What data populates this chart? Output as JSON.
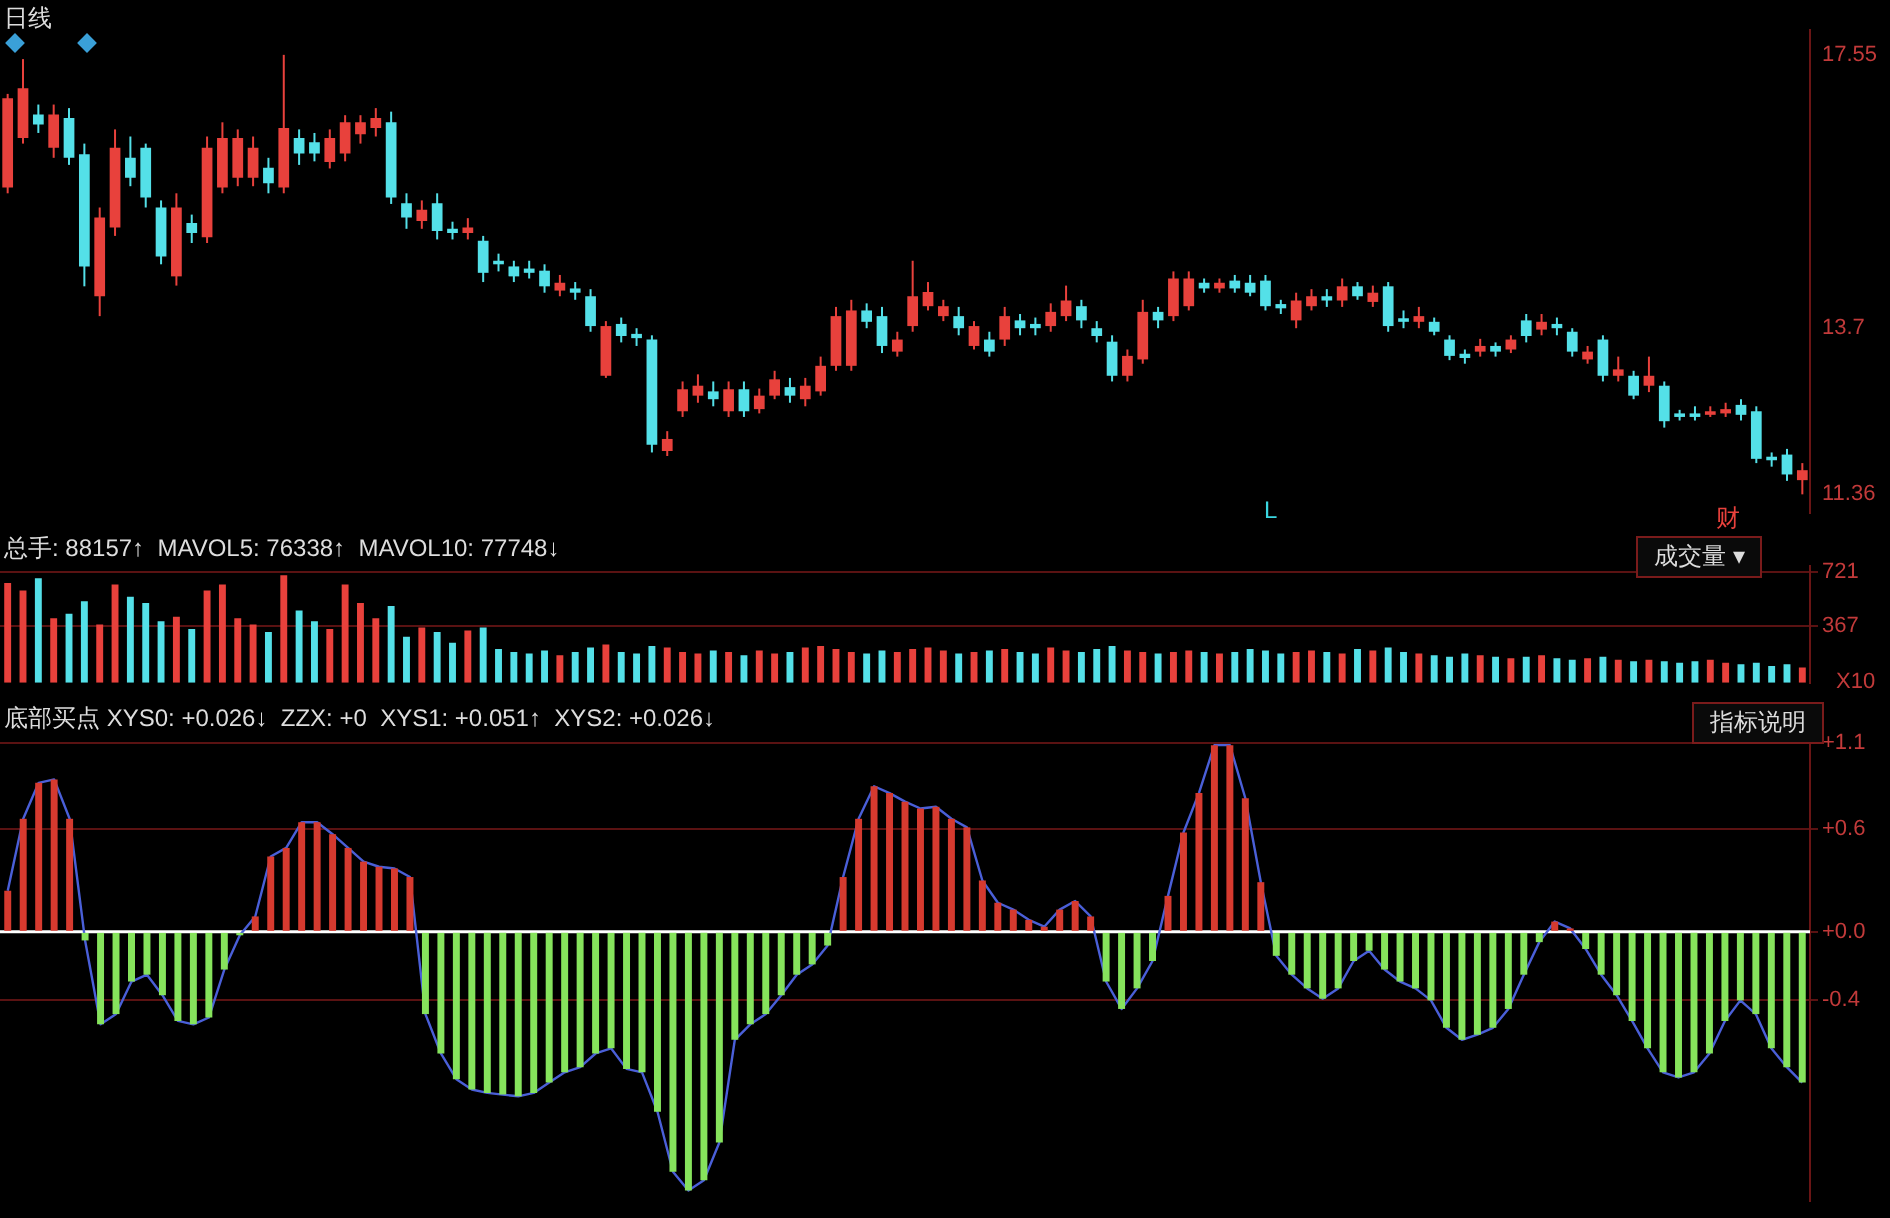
{
  "chart_data": [
    {
      "type": "candlestick",
      "title": "日线",
      "tick_labels": "y",
      "ylim": [
        11.1,
        17.9
      ],
      "yticks": [
        17.55,
        13.7,
        11.36
      ],
      "categories": [
        null,
        null,
        null,
        null,
        null,
        null,
        null,
        null,
        null,
        null,
        null,
        null,
        null,
        null,
        null,
        null,
        null,
        null,
        null,
        null,
        null,
        null,
        null,
        null,
        null,
        null,
        null,
        null,
        null,
        null,
        null,
        null,
        null,
        null,
        null,
        null,
        null,
        null,
        null,
        null,
        null,
        null,
        null,
        null,
        null,
        null,
        null,
        null,
        null,
        null,
        null,
        null,
        null,
        null,
        null,
        null,
        null,
        null,
        null,
        null,
        null,
        null,
        null,
        null,
        null,
        null,
        null,
        null,
        null,
        null,
        null,
        null,
        null,
        null,
        null,
        null,
        null,
        null,
        null,
        null,
        null,
        null,
        null,
        null,
        null,
        null,
        null,
        null,
        null,
        null,
        null,
        null,
        null,
        null,
        null,
        null,
        null,
        null,
        null,
        null,
        null,
        null,
        null,
        null,
        null,
        null,
        null,
        null,
        null,
        null,
        null,
        null,
        null,
        null,
        null,
        null,
        null,
        null
      ],
      "ohlc": [
        [
          15.68,
          17.0,
          15.6,
          16.94
        ],
        [
          16.38,
          17.49,
          16.3,
          17.08
        ],
        [
          16.71,
          16.85,
          16.45,
          16.57
        ],
        [
          16.24,
          16.85,
          16.1,
          16.71
        ],
        [
          16.66,
          16.8,
          16.0,
          16.1
        ],
        [
          16.15,
          16.3,
          14.29,
          14.57
        ],
        [
          14.15,
          15.4,
          13.87,
          15.26
        ],
        [
          15.12,
          16.5,
          15.0,
          16.24
        ],
        [
          16.1,
          16.4,
          15.7,
          15.82
        ],
        [
          16.24,
          16.3,
          15.4,
          15.54
        ],
        [
          15.4,
          15.5,
          14.6,
          14.71
        ],
        [
          14.43,
          15.6,
          14.3,
          15.4
        ],
        [
          15.18,
          15.3,
          14.9,
          15.04
        ],
        [
          14.98,
          16.4,
          14.9,
          16.24
        ],
        [
          15.68,
          16.6,
          15.6,
          16.38
        ],
        [
          15.82,
          16.5,
          15.7,
          16.38
        ],
        [
          15.82,
          16.4,
          15.7,
          16.24
        ],
        [
          15.96,
          16.1,
          15.6,
          15.74
        ],
        [
          15.68,
          17.55,
          15.6,
          16.52
        ],
        [
          16.38,
          16.5,
          16.0,
          16.16
        ],
        [
          16.32,
          16.45,
          16.05,
          16.16
        ],
        [
          16.04,
          16.5,
          15.95,
          16.38
        ],
        [
          16.16,
          16.7,
          16.05,
          16.6
        ],
        [
          16.43,
          16.7,
          16.3,
          16.6
        ],
        [
          16.52,
          16.8,
          16.4,
          16.66
        ],
        [
          16.6,
          16.75,
          15.45,
          15.54
        ],
        [
          15.46,
          15.6,
          15.1,
          15.26
        ],
        [
          15.21,
          15.5,
          15.1,
          15.37
        ],
        [
          15.46,
          15.6,
          14.95,
          15.07
        ],
        [
          15.1,
          15.2,
          14.95,
          15.04
        ],
        [
          15.04,
          15.25,
          14.95,
          15.12
        ],
        [
          14.93,
          15.0,
          14.35,
          14.48
        ],
        [
          14.65,
          14.75,
          14.5,
          14.6
        ],
        [
          14.57,
          14.65,
          14.35,
          14.43
        ],
        [
          14.54,
          14.65,
          14.4,
          14.48
        ],
        [
          14.51,
          14.6,
          14.2,
          14.29
        ],
        [
          14.23,
          14.45,
          14.15,
          14.34
        ],
        [
          14.26,
          14.35,
          14.1,
          14.2
        ],
        [
          14.15,
          14.25,
          13.65,
          13.73
        ],
        [
          13.03,
          13.8,
          13.0,
          13.73
        ],
        [
          13.76,
          13.85,
          13.5,
          13.59
        ],
        [
          13.62,
          13.7,
          13.45,
          13.56
        ],
        [
          13.54,
          13.6,
          11.95,
          12.06
        ],
        [
          11.97,
          12.25,
          11.9,
          12.14
        ],
        [
          12.53,
          12.95,
          12.45,
          12.84
        ],
        [
          12.75,
          13.05,
          12.65,
          12.89
        ],
        [
          12.81,
          12.95,
          12.6,
          12.7
        ],
        [
          12.53,
          12.95,
          12.45,
          12.84
        ],
        [
          12.84,
          12.95,
          12.45,
          12.53
        ],
        [
          12.56,
          12.85,
          12.5,
          12.75
        ],
        [
          12.75,
          13.1,
          12.7,
          12.98
        ],
        [
          12.87,
          13.0,
          12.65,
          12.75
        ],
        [
          12.7,
          13.0,
          12.6,
          12.89
        ],
        [
          12.81,
          13.3,
          12.75,
          13.17
        ],
        [
          13.17,
          14.0,
          13.1,
          13.87
        ],
        [
          13.17,
          14.1,
          13.1,
          13.95
        ],
        [
          13.95,
          14.05,
          13.7,
          13.79
        ],
        [
          13.87,
          14.0,
          13.35,
          13.45
        ],
        [
          13.37,
          13.65,
          13.3,
          13.54
        ],
        [
          13.73,
          14.65,
          13.65,
          14.15
        ],
        [
          14.01,
          14.35,
          13.95,
          14.21
        ],
        [
          13.87,
          14.1,
          13.8,
          14.01
        ],
        [
          13.87,
          14.0,
          13.6,
          13.7
        ],
        [
          13.45,
          13.8,
          13.4,
          13.73
        ],
        [
          13.54,
          13.65,
          13.3,
          13.37
        ],
        [
          13.54,
          14.0,
          13.45,
          13.87
        ],
        [
          13.81,
          13.9,
          13.6,
          13.7
        ],
        [
          13.76,
          13.85,
          13.6,
          13.7
        ],
        [
          13.73,
          14.05,
          13.65,
          13.93
        ],
        [
          13.87,
          14.3,
          13.8,
          14.09
        ],
        [
          14.01,
          14.1,
          13.7,
          13.81
        ],
        [
          13.7,
          13.8,
          13.5,
          13.59
        ],
        [
          13.51,
          13.6,
          12.95,
          13.03
        ],
        [
          13.03,
          13.4,
          12.95,
          13.31
        ],
        [
          13.26,
          14.1,
          13.2,
          13.93
        ],
        [
          13.93,
          14.0,
          13.7,
          13.81
        ],
        [
          13.87,
          14.5,
          13.8,
          14.4
        ],
        [
          14.01,
          14.5,
          13.95,
          14.4
        ],
        [
          14.34,
          14.4,
          14.2,
          14.26
        ],
        [
          14.26,
          14.4,
          14.2,
          14.34
        ],
        [
          14.37,
          14.45,
          14.2,
          14.26
        ],
        [
          14.34,
          14.45,
          14.15,
          14.2
        ],
        [
          14.37,
          14.45,
          13.95,
          14.01
        ],
        [
          14.04,
          14.1,
          13.9,
          13.98
        ],
        [
          13.81,
          14.2,
          13.7,
          14.09
        ],
        [
          14.01,
          14.25,
          13.95,
          14.15
        ],
        [
          14.15,
          14.25,
          14.0,
          14.09
        ],
        [
          14.09,
          14.4,
          14.0,
          14.29
        ],
        [
          14.29,
          14.35,
          14.1,
          14.15
        ],
        [
          14.07,
          14.3,
          14.0,
          14.2
        ],
        [
          14.29,
          14.35,
          13.65,
          13.73
        ],
        [
          13.84,
          13.95,
          13.7,
          13.79
        ],
        [
          13.79,
          14.0,
          13.7,
          13.87
        ],
        [
          13.79,
          13.85,
          13.6,
          13.65
        ],
        [
          13.54,
          13.6,
          13.25,
          13.31
        ],
        [
          13.34,
          13.4,
          13.2,
          13.28
        ],
        [
          13.37,
          13.55,
          13.3,
          13.45
        ],
        [
          13.45,
          13.5,
          13.3,
          13.37
        ],
        [
          13.4,
          13.6,
          13.35,
          13.54
        ],
        [
          13.81,
          13.9,
          13.5,
          13.59
        ],
        [
          13.68,
          13.9,
          13.6,
          13.79
        ],
        [
          13.76,
          13.85,
          13.6,
          13.7
        ],
        [
          13.65,
          13.7,
          13.3,
          13.37
        ],
        [
          13.26,
          13.45,
          13.2,
          13.37
        ],
        [
          13.54,
          13.6,
          12.95,
          13.03
        ],
        [
          13.03,
          13.3,
          12.95,
          13.12
        ],
        [
          13.03,
          13.1,
          12.7,
          12.75
        ],
        [
          12.89,
          13.3,
          12.8,
          13.03
        ],
        [
          12.89,
          12.95,
          12.3,
          12.39
        ],
        [
          12.5,
          12.55,
          12.4,
          12.45
        ],
        [
          12.5,
          12.6,
          12.4,
          12.45
        ],
        [
          12.48,
          12.6,
          12.45,
          12.53
        ],
        [
          12.5,
          12.65,
          12.45,
          12.56
        ],
        [
          12.62,
          12.7,
          12.4,
          12.48
        ],
        [
          12.53,
          12.6,
          11.8,
          11.86
        ],
        [
          11.89,
          11.95,
          11.75,
          11.84
        ],
        [
          11.92,
          12.0,
          11.55,
          11.64
        ],
        [
          11.56,
          11.8,
          11.36,
          11.7
        ]
      ],
      "colors": [
        "#e8413c",
        "#e8413c",
        "#54e0e8",
        "#e8413c",
        "#54e0e8",
        "#54e0e8",
        "#e8413c",
        "#e8413c",
        "#54e0e8",
        "#54e0e8",
        "#54e0e8",
        "#e8413c",
        "#54e0e8",
        "#e8413c",
        "#e8413c",
        "#e8413c",
        "#e8413c",
        "#54e0e8",
        "#e8413c",
        "#54e0e8",
        "#54e0e8",
        "#e8413c",
        "#e8413c",
        "#e8413c",
        "#e8413c",
        "#54e0e8",
        "#54e0e8",
        "#e8413c",
        "#54e0e8",
        "#54e0e8",
        "#e8413c",
        "#54e0e8",
        "#54e0e8",
        "#54e0e8",
        "#54e0e8",
        "#54e0e8",
        "#e8413c",
        "#54e0e8",
        "#54e0e8",
        "#e8413c",
        "#54e0e8",
        "#54e0e8",
        "#54e0e8",
        "#e8413c",
        "#e8413c",
        "#e8413c",
        "#54e0e8",
        "#e8413c",
        "#54e0e8",
        "#e8413c",
        "#e8413c",
        "#54e0e8",
        "#e8413c",
        "#e8413c",
        "#e8413c",
        "#e8413c",
        "#54e0e8",
        "#54e0e8",
        "#e8413c",
        "#e8413c",
        "#e8413c",
        "#e8413c",
        "#54e0e8",
        "#e8413c",
        "#54e0e8",
        "#e8413c",
        "#54e0e8",
        "#54e0e8",
        "#e8413c",
        "#e8413c",
        "#54e0e8",
        "#54e0e8",
        "#54e0e8",
        "#e8413c",
        "#e8413c",
        "#54e0e8",
        "#e8413c",
        "#e8413c",
        "#54e0e8",
        "#e8413c",
        "#54e0e8",
        "#54e0e8",
        "#54e0e8",
        "#54e0e8",
        "#e8413c",
        "#e8413c",
        "#54e0e8",
        "#e8413c",
        "#54e0e8",
        "#e8413c",
        "#54e0e8",
        "#54e0e8",
        "#e8413c",
        "#54e0e8",
        "#54e0e8",
        "#54e0e8",
        "#e8413c",
        "#54e0e8",
        "#e8413c",
        "#54e0e8",
        "#e8413c",
        "#54e0e8",
        "#54e0e8",
        "#e8413c",
        "#54e0e8",
        "#e8413c",
        "#54e0e8",
        "#e8413c",
        "#54e0e8",
        "#54e0e8",
        "#54e0e8",
        "#e8413c",
        "#e8413c",
        "#54e0e8",
        "#54e0e8",
        "#54e0e8",
        "#54e0e8",
        "#e8413c"
      ],
      "annotations": [
        "L",
        "财"
      ]
    },
    {
      "type": "bar",
      "title": "总手: 88157↑  MAVOL5: 76338↑  MAVOL10: 77748↓",
      "tick_labels": "y",
      "grid": "y",
      "ylim": [
        0,
        760
      ],
      "yticks": [
        367,
        721
      ],
      "categories": [
        null,
        null,
        null,
        null,
        null,
        null,
        null,
        null,
        null,
        null,
        null,
        null,
        null,
        null,
        null,
        null,
        null,
        null,
        null,
        null,
        null,
        null,
        null,
        null,
        null,
        null,
        null,
        null,
        null,
        null,
        null,
        null,
        null,
        null,
        null,
        null,
        null,
        null,
        null,
        null,
        null,
        null,
        null,
        null,
        null,
        null,
        null,
        null,
        null,
        null,
        null,
        null,
        null,
        null,
        null,
        null,
        null,
        null,
        null,
        null,
        null,
        null,
        null,
        null,
        null,
        null,
        null,
        null,
        null,
        null,
        null,
        null,
        null,
        null,
        null,
        null,
        null,
        null,
        null,
        null,
        null,
        null,
        null,
        null,
        null,
        null,
        null,
        null,
        null,
        null,
        null,
        null,
        null,
        null,
        null,
        null,
        null,
        null,
        null,
        null,
        null,
        null,
        null,
        null,
        null,
        null,
        null,
        null,
        null,
        null,
        null,
        null,
        null,
        null,
        null,
        null,
        null,
        null
      ],
      "values": [
        650,
        600,
        680,
        420,
        450,
        530,
        380,
        640,
        560,
        520,
        400,
        430,
        350,
        600,
        640,
        420,
        380,
        330,
        700,
        470,
        400,
        350,
        640,
        520,
        420,
        500,
        300,
        360,
        330,
        260,
        340,
        360,
        220,
        200,
        190,
        210,
        180,
        200,
        230,
        250,
        200,
        190,
        240,
        230,
        200,
        190,
        210,
        200,
        180,
        210,
        190,
        200,
        230,
        240,
        220,
        200,
        190,
        210,
        200,
        220,
        230,
        210,
        190,
        200,
        210,
        220,
        200,
        190,
        230,
        210,
        200,
        220,
        240,
        210,
        200,
        190,
        200,
        210,
        200,
        190,
        200,
        220,
        210,
        190,
        200,
        210,
        200,
        190,
        220,
        210,
        230,
        200,
        190,
        180,
        170,
        190,
        180,
        170,
        160,
        170,
        180,
        160,
        150,
        160,
        170,
        150,
        140,
        150,
        140,
        130,
        140,
        150,
        130,
        120,
        130,
        110,
        120,
        100
      ],
      "colors": [
        "#e8413c",
        "#e8413c",
        "#54e0e8",
        "#e8413c",
        "#54e0e8",
        "#54e0e8",
        "#e8413c",
        "#e8413c",
        "#54e0e8",
        "#54e0e8",
        "#54e0e8",
        "#e8413c",
        "#54e0e8",
        "#e8413c",
        "#e8413c",
        "#e8413c",
        "#e8413c",
        "#54e0e8",
        "#e8413c",
        "#54e0e8",
        "#54e0e8",
        "#e8413c",
        "#e8413c",
        "#e8413c",
        "#e8413c",
        "#54e0e8",
        "#54e0e8",
        "#e8413c",
        "#54e0e8",
        "#54e0e8",
        "#e8413c",
        "#54e0e8",
        "#54e0e8",
        "#54e0e8",
        "#54e0e8",
        "#54e0e8",
        "#e8413c",
        "#54e0e8",
        "#54e0e8",
        "#e8413c",
        "#54e0e8",
        "#54e0e8",
        "#54e0e8",
        "#e8413c",
        "#e8413c",
        "#e8413c",
        "#54e0e8",
        "#e8413c",
        "#54e0e8",
        "#e8413c",
        "#e8413c",
        "#54e0e8",
        "#e8413c",
        "#e8413c",
        "#e8413c",
        "#e8413c",
        "#54e0e8",
        "#54e0e8",
        "#e8413c",
        "#e8413c",
        "#e8413c",
        "#e8413c",
        "#54e0e8",
        "#e8413c",
        "#54e0e8",
        "#e8413c",
        "#54e0e8",
        "#54e0e8",
        "#e8413c",
        "#e8413c",
        "#54e0e8",
        "#54e0e8",
        "#54e0e8",
        "#e8413c",
        "#e8413c",
        "#54e0e8",
        "#e8413c",
        "#e8413c",
        "#54e0e8",
        "#e8413c",
        "#54e0e8",
        "#54e0e8",
        "#54e0e8",
        "#54e0e8",
        "#e8413c",
        "#e8413c",
        "#54e0e8",
        "#e8413c",
        "#54e0e8",
        "#e8413c",
        "#54e0e8",
        "#54e0e8",
        "#e8413c",
        "#54e0e8",
        "#54e0e8",
        "#54e0e8",
        "#e8413c",
        "#54e0e8",
        "#e8413c",
        "#54e0e8",
        "#e8413c",
        "#54e0e8",
        "#54e0e8",
        "#e8413c",
        "#54e0e8",
        "#e8413c",
        "#54e0e8",
        "#e8413c",
        "#54e0e8",
        "#54e0e8",
        "#54e0e8",
        "#e8413c",
        "#e8413c",
        "#54e0e8",
        "#54e0e8",
        "#54e0e8",
        "#54e0e8",
        "#e8413c"
      ],
      "annotations": [
        "成交量 ▾",
        "X10"
      ]
    },
    {
      "type": "bar",
      "title": "底部买点 XYS0: +0.026↓  ZZX: +0  XYS1: +0.051↑  XYS2: +0.026↓",
      "tick_labels": "y",
      "grid": "y",
      "ylim": [
        -1.57,
        1.12
      ],
      "yticks": [
        {
          "value": 1.1,
          "label": "+1.1"
        },
        {
          "value": 0.6,
          "label": "+0.6"
        },
        {
          "value": 0,
          "label": "+0.0"
        },
        {
          "value": -0.4,
          "label": "-0.4"
        }
      ],
      "ref_lines": [
        {
          "axis": "y",
          "value": 0,
          "color": "#ffffff"
        }
      ],
      "categories": [
        null,
        null,
        null,
        null,
        null,
        null,
        null,
        null,
        null,
        null,
        null,
        null,
        null,
        null,
        null,
        null,
        null,
        null,
        null,
        null,
        null,
        null,
        null,
        null,
        null,
        null,
        null,
        null,
        null,
        null,
        null,
        null,
        null,
        null,
        null,
        null,
        null,
        null,
        null,
        null,
        null,
        null,
        null,
        null,
        null,
        null,
        null,
        null,
        null,
        null,
        null,
        null,
        null,
        null,
        null,
        null,
        null,
        null,
        null,
        null,
        null,
        null,
        null,
        null,
        null,
        null,
        null,
        null,
        null,
        null,
        null,
        null,
        null,
        null,
        null,
        null,
        null,
        null,
        null,
        null,
        null,
        null,
        null,
        null,
        null,
        null,
        null,
        null,
        null,
        null,
        null,
        null,
        null,
        null,
        null,
        null,
        null,
        null,
        null,
        null,
        null,
        null,
        null,
        null,
        null,
        null,
        null,
        null,
        null,
        null,
        null,
        null,
        null,
        null,
        null,
        null,
        null
      ],
      "series": [
        {
          "colors": [
            "#d63a2f",
            "#d63a2f",
            "#d63a2f",
            "#d63a2f",
            "#d63a2f",
            "#86e35c",
            "#86e35c",
            "#86e35c",
            "#86e35c",
            "#86e35c",
            "#86e35c",
            "#86e35c",
            "#86e35c",
            "#86e35c",
            "#86e35c",
            "#86e35c",
            "#d63a2f",
            "#d63a2f",
            "#d63a2f",
            "#d63a2f",
            "#d63a2f",
            "#d63a2f",
            "#d63a2f",
            "#d63a2f",
            "#d63a2f",
            "#d63a2f",
            "#d63a2f",
            "#86e35c",
            "#86e35c",
            "#86e35c",
            "#86e35c",
            "#86e35c",
            "#86e35c",
            "#86e35c",
            "#86e35c",
            "#86e35c",
            "#86e35c",
            "#86e35c",
            "#86e35c",
            "#86e35c",
            "#86e35c",
            "#86e35c",
            "#86e35c",
            "#86e35c",
            "#86e35c",
            "#86e35c",
            "#86e35c",
            "#86e35c",
            "#86e35c",
            "#86e35c",
            "#86e35c",
            "#86e35c",
            "#86e35c",
            "#86e35c",
            "#d63a2f",
            "#d63a2f",
            "#d63a2f",
            "#d63a2f",
            "#d63a2f",
            "#d63a2f",
            "#d63a2f",
            "#d63a2f",
            "#d63a2f",
            "#d63a2f",
            "#d63a2f",
            "#d63a2f",
            "#d63a2f",
            "#d63a2f",
            "#d63a2f",
            "#d63a2f",
            "#d63a2f",
            "#86e35c",
            "#86e35c",
            "#86e35c",
            "#86e35c",
            "#d63a2f",
            "#d63a2f",
            "#d63a2f",
            "#d63a2f",
            "#d63a2f",
            "#d63a2f",
            "#d63a2f",
            "#86e35c",
            "#86e35c",
            "#86e35c",
            "#86e35c",
            "#86e35c",
            "#86e35c",
            "#86e35c",
            "#86e35c",
            "#86e35c",
            "#86e35c",
            "#86e35c",
            "#86e35c",
            "#86e35c",
            "#86e35c",
            "#86e35c",
            "#86e35c",
            "#86e35c",
            "#86e35c",
            "#d63a2f",
            "#d63a2f",
            "#86e35c",
            "#86e35c",
            "#86e35c",
            "#86e35c",
            "#86e35c",
            "#86e35c",
            "#86e35c",
            "#86e35c",
            "#86e35c",
            "#86e35c",
            "#86e35c",
            "#86e35c",
            "#86e35c",
            "#86e35c",
            "#86e35c"
          ],
          "values": [
            0.24,
            0.66,
            0.87,
            0.89,
            0.66,
            -0.05,
            -0.54,
            -0.48,
            -0.29,
            -0.25,
            -0.37,
            -0.52,
            -0.54,
            -0.5,
            -0.22,
            -0.02,
            0.09,
            0.44,
            0.49,
            0.64,
            0.64,
            0.57,
            0.49,
            0.41,
            0.38,
            0.37,
            0.32,
            -0.48,
            -0.71,
            -0.86,
            -0.92,
            -0.94,
            -0.95,
            -0.96,
            -0.94,
            -0.88,
            -0.82,
            -0.79,
            -0.71,
            -0.68,
            -0.8,
            -0.82,
            -1.05,
            -1.4,
            -1.51,
            -1.45,
            -1.23,
            -0.63,
            -0.54,
            -0.48,
            -0.37,
            -0.25,
            -0.19,
            -0.08,
            0.32,
            0.66,
            0.85,
            0.81,
            0.76,
            0.72,
            0.73,
            0.66,
            0.61,
            0.3,
            0.17,
            0.13,
            0.07,
            0.03,
            0.13,
            0.18,
            0.09,
            -0.29,
            -0.45,
            -0.33,
            -0.17,
            0.21,
            0.58,
            0.81,
            1.09,
            1.09,
            0.78,
            0.29,
            -0.14,
            -0.25,
            -0.33,
            -0.39,
            -0.33,
            -0.17,
            -0.11,
            -0.22,
            -0.29,
            -0.33,
            -0.4,
            -0.56,
            -0.63,
            -0.6,
            -0.56,
            -0.45,
            -0.25,
            -0.06,
            0.06,
            0.02,
            -0.1,
            -0.25,
            -0.37,
            -0.52,
            -0.68,
            -0.82,
            -0.85,
            -0.82,
            -0.71,
            -0.52,
            -0.4,
            -0.48,
            -0.68,
            -0.79,
            -0.88
          ]
        },
        {
          "type": "line",
          "color": "#4a5fd8",
          "values": [
            0.24,
            0.66,
            0.87,
            0.89,
            0.66,
            -0.05,
            -0.54,
            -0.48,
            -0.29,
            -0.25,
            -0.37,
            -0.52,
            -0.54,
            -0.5,
            -0.22,
            -0.02,
            0.09,
            0.44,
            0.49,
            0.64,
            0.64,
            0.57,
            0.49,
            0.41,
            0.38,
            0.37,
            0.32,
            -0.48,
            -0.71,
            -0.86,
            -0.92,
            -0.94,
            -0.95,
            -0.96,
            -0.94,
            -0.88,
            -0.82,
            -0.79,
            -0.71,
            -0.68,
            -0.8,
            -0.82,
            -1.05,
            -1.4,
            -1.51,
            -1.45,
            -1.23,
            -0.63,
            -0.54,
            -0.48,
            -0.37,
            -0.25,
            -0.19,
            -0.08,
            0.32,
            0.66,
            0.85,
            0.81,
            0.76,
            0.72,
            0.73,
            0.66,
            0.61,
            0.3,
            0.17,
            0.13,
            0.07,
            0.03,
            0.13,
            0.18,
            0.09,
            -0.29,
            -0.45,
            -0.33,
            -0.17,
            0.21,
            0.58,
            0.81,
            1.09,
            1.09,
            0.78,
            0.29,
            -0.14,
            -0.25,
            -0.33,
            -0.39,
            -0.33,
            -0.17,
            -0.11,
            -0.22,
            -0.29,
            -0.33,
            -0.4,
            -0.56,
            -0.63,
            -0.6,
            -0.56,
            -0.45,
            -0.25,
            -0.06,
            0.06,
            0.02,
            -0.1,
            -0.25,
            -0.37,
            -0.52,
            -0.68,
            -0.82,
            -0.85,
            -0.82,
            -0.71,
            -0.52,
            -0.4,
            -0.48,
            -0.68,
            -0.79,
            -0.88
          ]
        }
      ],
      "annotations": [
        "指标说明"
      ]
    }
  ]
}
